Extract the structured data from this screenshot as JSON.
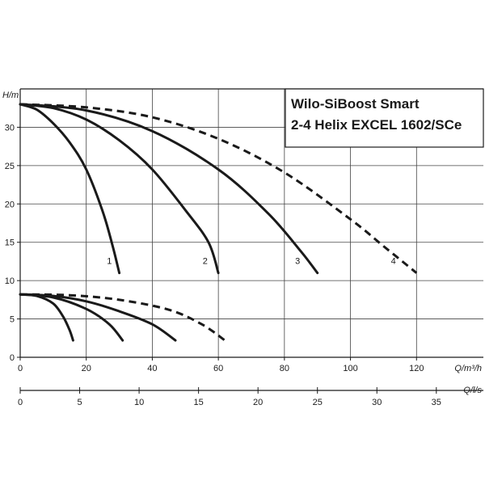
{
  "chart_data": {
    "type": "line",
    "title_lines": [
      "Wilo-SiBoost Smart",
      "2-4 Helix EXCEL 1602/SCe"
    ],
    "ylabel": "H/m",
    "xlabel": "Q/m³/h",
    "xlabel2": "Q/l/s",
    "ylim": [
      0,
      35
    ],
    "xlim": [
      0,
      140
    ],
    "yticks": [
      0,
      5,
      10,
      15,
      20,
      25,
      30
    ],
    "xticks": [
      0,
      20,
      40,
      60,
      80,
      100,
      120
    ],
    "x2ticks": [
      0,
      5,
      10,
      15,
      20,
      25,
      30,
      35
    ],
    "grid": true,
    "series": [
      {
        "name": "1",
        "style": "solid",
        "label_at": [
          27,
          12.2
        ],
        "points": [
          [
            0,
            33
          ],
          [
            5,
            32.3
          ],
          [
            10,
            30.5
          ],
          [
            15,
            28
          ],
          [
            20,
            24.5
          ],
          [
            25,
            19
          ],
          [
            28,
            14.5
          ],
          [
            30,
            11
          ]
        ]
      },
      {
        "name": "2",
        "style": "solid",
        "label_at": [
          56,
          12.2
        ],
        "points": [
          [
            0,
            33
          ],
          [
            10,
            32.5
          ],
          [
            20,
            31
          ],
          [
            30,
            28.3
          ],
          [
            40,
            24.5
          ],
          [
            50,
            19.2
          ],
          [
            57,
            15
          ],
          [
            60,
            11
          ]
        ]
      },
      {
        "name": "3",
        "style": "solid",
        "label_at": [
          84,
          12.2
        ],
        "points": [
          [
            0,
            33
          ],
          [
            20,
            32.2
          ],
          [
            40,
            29.5
          ],
          [
            60,
            24.5
          ],
          [
            75,
            18.8
          ],
          [
            85,
            13.8
          ],
          [
            90,
            11
          ]
        ]
      },
      {
        "name": "4",
        "style": "dashed",
        "label_at": [
          113,
          12.2
        ],
        "points": [
          [
            0,
            33
          ],
          [
            20,
            32.6
          ],
          [
            40,
            31.3
          ],
          [
            60,
            28.5
          ],
          [
            80,
            24.1
          ],
          [
            100,
            18
          ],
          [
            110,
            14.5
          ],
          [
            120,
            11
          ]
        ]
      },
      {
        "style": "solid",
        "points": [
          [
            0,
            8.2
          ],
          [
            5,
            8
          ],
          [
            10,
            7
          ],
          [
            13,
            5.3
          ],
          [
            15,
            3.5
          ],
          [
            16,
            2.2
          ]
        ]
      },
      {
        "style": "solid",
        "points": [
          [
            0,
            8.2
          ],
          [
            10,
            7.8
          ],
          [
            20,
            6.3
          ],
          [
            27,
            4.3
          ],
          [
            31,
            2.2
          ]
        ]
      },
      {
        "style": "solid",
        "points": [
          [
            0,
            8.2
          ],
          [
            10,
            8
          ],
          [
            20,
            7.3
          ],
          [
            30,
            6
          ],
          [
            40,
            4.3
          ],
          [
            47,
            2.2
          ]
        ]
      },
      {
        "style": "dashed",
        "points": [
          [
            0,
            8.2
          ],
          [
            15,
            8.1
          ],
          [
            30,
            7.5
          ],
          [
            45,
            6.2
          ],
          [
            55,
            4.3
          ],
          [
            62,
            2.2
          ]
        ]
      }
    ]
  }
}
